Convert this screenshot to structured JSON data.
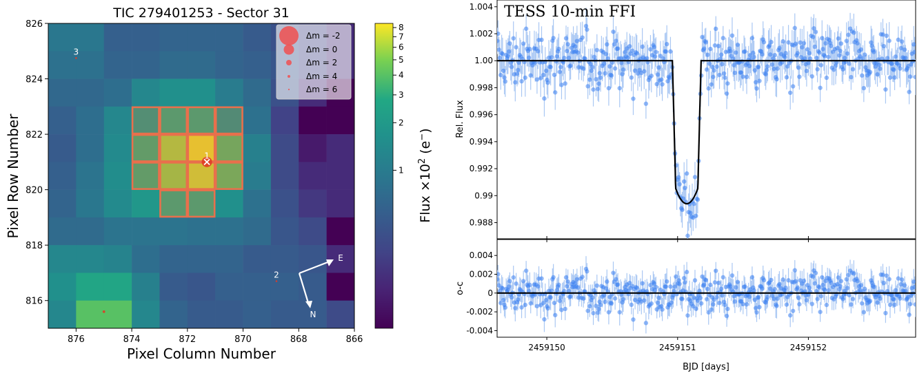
{
  "chart_data": [
    {
      "type": "heatmap",
      "title": "TIC 279401253 - Sector 31",
      "xlabel": "Pixel Column Number",
      "ylabel": "Pixel Row Number",
      "x_ticks": [
        "876",
        "874",
        "872",
        "870",
        "868",
        "866"
      ],
      "y_ticks": [
        "826",
        "824",
        "822",
        "820",
        "818",
        "816"
      ],
      "xlim": [
        877,
        866
      ],
      "ylim": [
        815,
        826
      ],
      "x_columns": [
        876.5,
        875.5,
        874.5,
        873.5,
        872.5,
        871.5,
        870.5,
        869.5,
        868.5,
        867.5,
        866.5
      ],
      "y_rows": [
        825.5,
        824.5,
        823.5,
        822.5,
        821.5,
        820.5,
        819.5,
        818.5,
        817.5,
        816.5,
        815.5
      ],
      "flux_e2": [
        [
          0.9,
          0.9,
          0.55,
          0.55,
          0.6,
          0.6,
          0.6,
          0.5,
          0.4,
          0.3,
          0.2
        ],
        [
          0.8,
          0.8,
          0.6,
          0.6,
          0.7,
          0.7,
          0.6,
          0.55,
          0.45,
          0.3,
          0.2
        ],
        [
          0.65,
          0.65,
          0.75,
          1.3,
          1.6,
          1.6,
          1.0,
          0.7,
          0.4,
          0.2,
          0.1
        ],
        [
          0.55,
          0.75,
          1.3,
          2.2,
          3.0,
          3.0,
          2.0,
          0.8,
          0.3,
          0.1,
          0.1
        ],
        [
          0.5,
          0.75,
          1.4,
          3.2,
          6.0,
          8.0,
          3.8,
          1.1,
          0.35,
          0.15,
          0.2
        ],
        [
          0.55,
          0.85,
          1.5,
          3.2,
          5.5,
          7.0,
          4.0,
          1.0,
          0.35,
          0.2,
          0.2
        ],
        [
          0.6,
          0.9,
          1.4,
          1.9,
          3.0,
          3.0,
          1.6,
          0.8,
          0.4,
          0.25,
          0.2
        ],
        [
          0.7,
          0.7,
          0.85,
          0.85,
          0.85,
          0.8,
          0.8,
          0.7,
          0.45,
          0.35,
          0.1
        ],
        [
          1.3,
          1.3,
          1.2,
          0.75,
          0.6,
          0.6,
          0.6,
          0.5,
          0.5,
          0.45,
          0.2
        ],
        [
          1.6,
          2.6,
          2.6,
          1.1,
          0.5,
          0.45,
          0.55,
          0.55,
          0.55,
          0.5,
          0.1
        ],
        [
          1.3,
          4.0,
          4.0,
          1.3,
          0.6,
          0.5,
          0.5,
          0.55,
          0.5,
          0.5,
          0.35
        ]
      ],
      "aperture_pixels": [
        [
          873.5,
          822.5
        ],
        [
          872.5,
          822.5
        ],
        [
          871.5,
          822.5
        ],
        [
          870.5,
          822.5
        ],
        [
          873.5,
          821.5
        ],
        [
          872.5,
          821.5
        ],
        [
          871.5,
          821.5
        ],
        [
          870.5,
          821.5
        ],
        [
          873.5,
          820.5
        ],
        [
          872.5,
          820.5
        ],
        [
          871.5,
          820.5
        ],
        [
          870.5,
          820.5
        ],
        [
          872.5,
          819.5
        ],
        [
          871.5,
          819.5
        ]
      ],
      "stars": [
        {
          "label": "1",
          "x": 871.3,
          "y": 821.0,
          "dm": 0,
          "target": true
        },
        {
          "label": "2",
          "x": 868.8,
          "y": 816.7,
          "dm": 7
        },
        {
          "label": "3",
          "x": 876.0,
          "y": 824.75,
          "dm": 7
        },
        {
          "label": "",
          "x": 875.0,
          "y": 815.6,
          "dm": 3
        }
      ],
      "legend": {
        "placement": "top-right",
        "entries": [
          "Δm = -2",
          "Δm = 0",
          "Δm = 2",
          "Δm = 4",
          "Δm = 6"
        ]
      },
      "compass": {
        "east": "E",
        "north": "N"
      },
      "colorbar": {
        "label": "Flux ×10² (e⁻)",
        "scale": "log",
        "range": [
          0.1,
          8.5
        ],
        "ticks": [
          "8",
          "7",
          "6",
          "5",
          "4",
          "3",
          "2",
          "1"
        ]
      },
      "colors": {
        "aperture": "#e8704c",
        "star": "#e03c26",
        "star_legend": "#f05050"
      }
    },
    {
      "type": "scatter",
      "title": "",
      "annotation": "TESS 10-min FFI",
      "xlabel": "BJD [days]",
      "ylabel": "Rel. Flux",
      "residual_ylabel": "o-c",
      "xlim": [
        2459149.62,
        2459152.82
      ],
      "ylim": [
        0.9868,
        1.0045
      ],
      "residual_ylim": [
        -0.0047,
        0.0057
      ],
      "x_ticks": [
        "2459150",
        "2459151",
        "2459152"
      ],
      "y_ticks": [
        "1.004",
        "1.002",
        "1.00",
        "0.998",
        "0.996",
        "0.994",
        "0.992",
        "0.99",
        "0.988"
      ],
      "residual_y_ticks": [
        "0.004",
        "0.002",
        "0",
        "-0.002",
        "-0.004"
      ],
      "model": {
        "baseline": 1.0,
        "transit_depth": 0.0106,
        "transit_center": 2459151.07,
        "transit_start": 2459150.96,
        "transit_end": 2459151.18
      },
      "scatter_rms": 0.0011,
      "cadence_days": 0.00694,
      "colors": {
        "points": "#3a7ff0",
        "errorbars": "#a9c7f3",
        "model": "#000000"
      }
    }
  ]
}
